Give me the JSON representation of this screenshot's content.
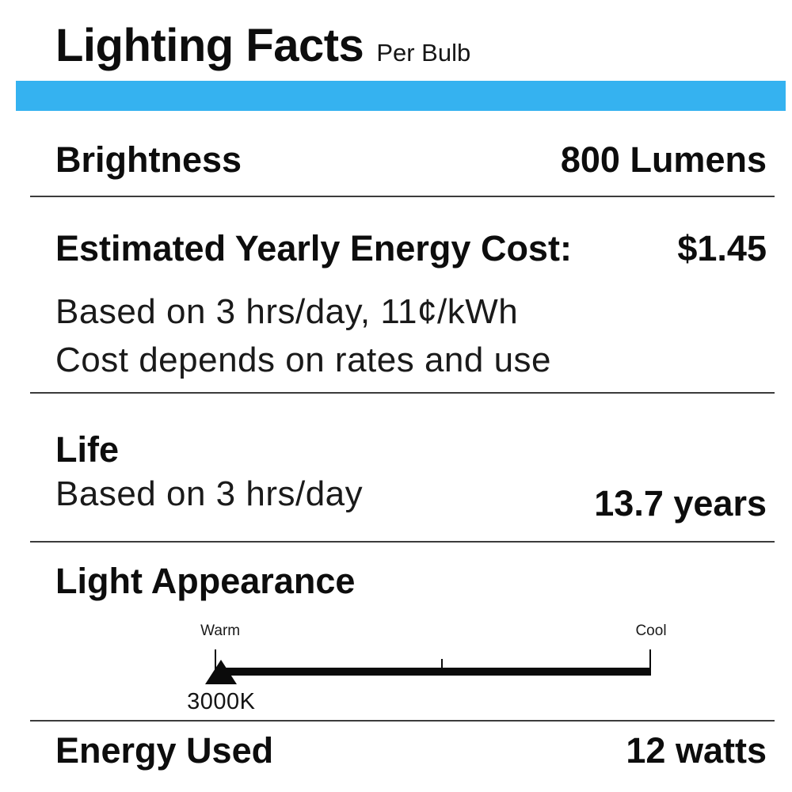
{
  "meta": {
    "accent_color": "#35B2F0",
    "separator_color": "#3c3c3c",
    "text_color": "#0d0d0d",
    "background_color": "#ffffff"
  },
  "header": {
    "title": "Lighting Facts",
    "subtitle": "Per Bulb"
  },
  "rows": {
    "brightness": {
      "label": "Brightness",
      "value": "800 Lumens"
    },
    "energy_cost": {
      "label": "Estimated Yearly Energy Cost:",
      "value": "$1.45",
      "notes": [
        "Based on 3 hrs/day, 11¢/kWh",
        "Cost depends on rates and use"
      ]
    },
    "life": {
      "label": "Life",
      "note": "Based on 3 hrs/day",
      "value": "13.7 years"
    },
    "light_appearance": {
      "label": "Light Appearance",
      "scale": {
        "left_label": "Warm",
        "right_label": "Cool",
        "marker_label": "3000K",
        "marker_icon": "triangle-up",
        "marker_position_pct": "1.5%",
        "mid_tick_position_pct": "51.9%"
      }
    },
    "energy_used": {
      "label": "Energy Used",
      "value": "12 watts"
    }
  }
}
